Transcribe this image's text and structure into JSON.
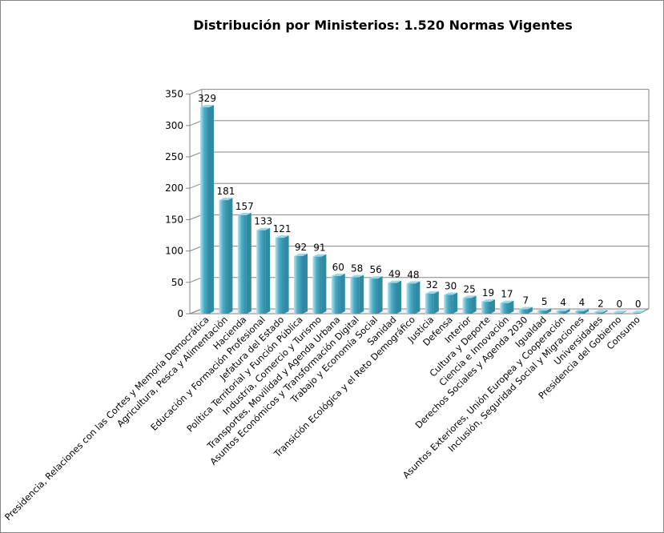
{
  "chart_data": {
    "type": "bar",
    "style": "3d-column",
    "title": "Distribución por Ministerios: 1.520 Normas Vigentes",
    "xlabel": "",
    "ylabel": "",
    "ylim": [
      0,
      350
    ],
    "yticks": [
      "0",
      "50",
      "100",
      "150",
      "200",
      "250",
      "300",
      "350"
    ],
    "grid": true,
    "legend": "none",
    "categories": [
      "Presidencia, Relaciones con las Cortes y Memoria Democrática",
      "Agricultura, Pesca y Alimentación",
      "Hacienda",
      "Educación y Formación Profesional",
      "Jefatura del Estado",
      "Política Territorial y Función Pública",
      "Industria, Comercio y Turismo",
      "Transportes, Movilidad y Agenda Urbana",
      "Asuntos Económicos y Transformación Digital",
      "Trabajo y Economía Social",
      "Sanidad",
      "Transición Ecológica y el Reto Demográfico",
      "Justicia",
      "Defensa",
      "Interior",
      "Cultura y Deporte",
      "Ciencia e Innovación",
      "Derechos Sociales y Agenda 2030",
      "Igualdad",
      "Asuntos Exteriores, Unión Europea y Cooperación",
      "Inclusión, Seguridad Social y Migraciones",
      "Universidades",
      "Presidencia del Gobierno",
      "Consumo"
    ],
    "values": [
      329,
      181,
      157,
      133,
      121,
      92,
      91,
      60,
      58,
      56,
      49,
      48,
      32,
      30,
      25,
      19,
      17,
      7,
      5,
      4,
      4,
      2,
      0,
      0
    ],
    "data_labels": [
      "329",
      "181",
      "157",
      "133",
      "121",
      "92",
      "91",
      "60",
      "58",
      "56",
      "49",
      "48",
      "32",
      "30",
      "25",
      "19",
      "17",
      "7",
      "5",
      "4",
      "4",
      "2",
      "0",
      "0"
    ],
    "colors": {
      "bar_front": "#4bacc6",
      "bar_light": "#b7e1ec",
      "bar_dark": "#2f8aa3",
      "bar_top": "#9fd6e4",
      "grid": "#868686",
      "walls": "#ffffff"
    }
  }
}
